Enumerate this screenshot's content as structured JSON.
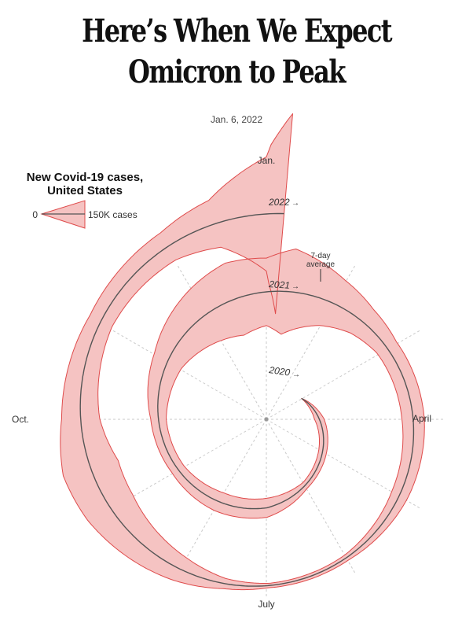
{
  "headline": "Here’s When We Expect Omicron to Peak",
  "date": "Jan. 6, 2022",
  "chart_data": {
    "type": "spiral",
    "title": "New Covid-19 cases, United States",
    "legend": {
      "title_line1": "New Covid-19 cases,",
      "title_line2": "United States",
      "min_label": "0",
      "max_label": "150K cases"
    },
    "month_labels": {
      "jan": "Jan.",
      "april": "April",
      "july": "July",
      "oct": "Oct."
    },
    "year_labels": [
      "2020",
      "2021",
      "2022"
    ],
    "annotation": {
      "line1": "7-day",
      "line2": "average"
    },
    "series": [
      {
        "year": "2020",
        "points": [
          {
            "day": 60,
            "cases": 0
          },
          {
            "day": 91,
            "cases": 28000
          },
          {
            "day": 121,
            "cases": 25000
          },
          {
            "day": 152,
            "cases": 21000
          },
          {
            "day": 182,
            "cases": 55000
          },
          {
            "day": 213,
            "cases": 58000
          },
          {
            "day": 244,
            "cases": 40000
          },
          {
            "day": 274,
            "cases": 45000
          },
          {
            "day": 305,
            "cases": 90000
          },
          {
            "day": 335,
            "cases": 175000
          },
          {
            "day": 350,
            "cases": 215000
          },
          {
            "day": 365,
            "cases": 195000
          }
        ]
      },
      {
        "year": "2021",
        "points": [
          {
            "day": 1,
            "cases": 200000
          },
          {
            "day": 10,
            "cases": 250000
          },
          {
            "day": 30,
            "cases": 150000
          },
          {
            "day": 45,
            "cases": 95000
          },
          {
            "day": 60,
            "cases": 65000
          },
          {
            "day": 91,
            "cases": 65000
          },
          {
            "day": 121,
            "cases": 50000
          },
          {
            "day": 152,
            "cases": 18000
          },
          {
            "day": 182,
            "cases": 13000
          },
          {
            "day": 197,
            "cases": 30000
          },
          {
            "day": 213,
            "cases": 75000
          },
          {
            "day": 244,
            "cases": 150000
          },
          {
            "day": 258,
            "cases": 165000
          },
          {
            "day": 274,
            "cases": 110000
          },
          {
            "day": 305,
            "cases": 72000
          },
          {
            "day": 320,
            "cases": 80000
          },
          {
            "day": 335,
            "cases": 90000
          },
          {
            "day": 350,
            "cases": 140000
          },
          {
            "day": 365,
            "cases": 330000
          }
        ]
      },
      {
        "year": "2022",
        "points": [
          {
            "day": 1,
            "cases": 400000
          },
          {
            "day": 5,
            "cases": 580000
          }
        ]
      }
    ]
  }
}
